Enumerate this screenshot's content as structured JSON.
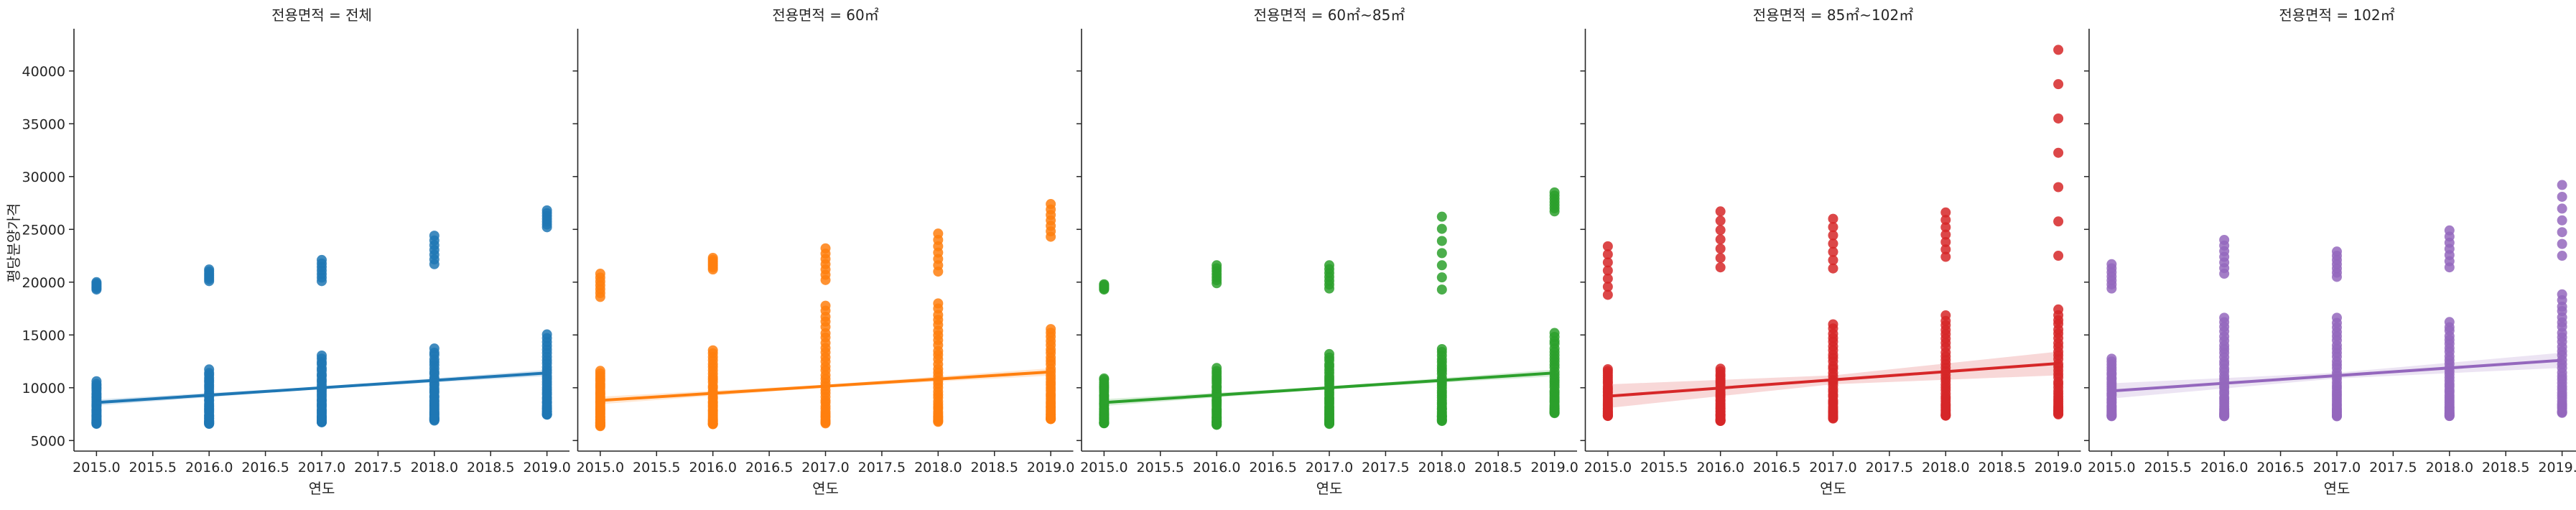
{
  "chart_data": {
    "type": "scatter",
    "grid": false,
    "xlabel": "연도",
    "ylabel": "평당분양가격",
    "xlim": [
      2014.8,
      2019.2
    ],
    "ylim": [
      4000,
      44000
    ],
    "xticks": [
      "2015.0",
      "2015.5",
      "2016.0",
      "2016.5",
      "2017.0",
      "2017.5",
      "2018.0",
      "2018.5",
      "2019.0"
    ],
    "yticks": [
      "5000",
      "10000",
      "15000",
      "20000",
      "25000",
      "30000",
      "35000",
      "40000"
    ],
    "facets": [
      {
        "title": "전용면적 = 전체",
        "color": "#1f77b4",
        "regression": {
          "start": [
            2015,
            8600
          ],
          "end": [
            2019,
            11400
          ],
          "ci_halfwidth": 180
        },
        "groups": [
          {
            "x": 2015,
            "low": [
              6600,
              10600
            ],
            "high": [
              19300,
              20000
            ]
          },
          {
            "x": 2016,
            "low": [
              6600,
              11700
            ],
            "high": [
              20100,
              21200
            ]
          },
          {
            "x": 2017,
            "low": [
              6700,
              13100
            ],
            "high": [
              20100,
              22100
            ]
          },
          {
            "x": 2018,
            "low": [
              6900,
              13700
            ],
            "high": [
              21700,
              24400
            ]
          },
          {
            "x": 2019,
            "low": [
              7400,
              15000
            ],
            "high": [
              25200,
              26800
            ]
          }
        ]
      },
      {
        "title": "전용면적 = 60㎡",
        "color": "#ff7f0e",
        "regression": {
          "start": [
            2015,
            8800
          ],
          "end": [
            2019,
            11500
          ],
          "ci_halfwidth": 220
        },
        "groups": [
          {
            "x": 2015,
            "low": [
              6400,
              11600
            ],
            "high": [
              18600,
              20800
            ]
          },
          {
            "x": 2016,
            "low": [
              6500,
              13600
            ],
            "high": [
              21200,
              22300
            ]
          },
          {
            "x": 2017,
            "low": [
              6600,
              17800
            ],
            "high": [
              20200,
              23200
            ]
          },
          {
            "x": 2018,
            "low": [
              6800,
              18000
            ],
            "high": [
              21000,
              24600
            ]
          },
          {
            "x": 2019,
            "low": [
              7000,
              15600
            ],
            "high": [
              24300,
              27400
            ]
          }
        ]
      },
      {
        "title": "전용면적 = 60㎡~85㎡",
        "color": "#2ca02c",
        "regression": {
          "start": [
            2015,
            8600
          ],
          "end": [
            2019,
            11400
          ],
          "ci_halfwidth": 200
        },
        "groups": [
          {
            "x": 2015,
            "low": [
              6600,
              10900
            ],
            "high": [
              19300,
              19800
            ]
          },
          {
            "x": 2016,
            "low": [
              6500,
              11900
            ],
            "high": [
              19900,
              21600
            ]
          },
          {
            "x": 2017,
            "low": [
              6600,
              13200
            ],
            "high": [
              19400,
              21600
            ]
          },
          {
            "x": 2018,
            "low": [
              6900,
              13700
            ],
            "high": [
              19300,
              26200
            ]
          },
          {
            "x": 2019,
            "low": [
              7600,
              15200
            ],
            "high": [
              26700,
              28500
            ]
          }
        ]
      },
      {
        "title": "전용면적 = 85㎡~102㎡",
        "color": "#d62728",
        "regression": {
          "start": [
            2015,
            9200
          ],
          "end": [
            2019,
            12300
          ],
          "ci_halfwidth": 700
        },
        "groups": [
          {
            "x": 2015,
            "low": [
              7300,
              11800
            ],
            "high": [
              18800,
              23400
            ]
          },
          {
            "x": 2016,
            "low": [
              6800,
              11800
            ],
            "high": [
              21400,
              26700
            ]
          },
          {
            "x": 2017,
            "low": [
              7100,
              16000
            ],
            "high": [
              21300,
              26000
            ]
          },
          {
            "x": 2018,
            "low": [
              7300,
              16800
            ],
            "high": [
              22400,
              26600
            ]
          },
          {
            "x": 2019,
            "low": [
              7500,
              17400
            ],
            "high": [
              22500,
              42000
            ]
          }
        ]
      },
      {
        "title": "전용면적 = 102㎡",
        "color": "#9467bd",
        "regression": {
          "start": [
            2015,
            9700
          ],
          "end": [
            2019,
            12600
          ],
          "ci_halfwidth": 450
        },
        "groups": [
          {
            "x": 2015,
            "low": [
              7300,
              12700
            ],
            "high": [
              19400,
              21700
            ]
          },
          {
            "x": 2016,
            "low": [
              7300,
              16600
            ],
            "high": [
              20800,
              24000
            ]
          },
          {
            "x": 2017,
            "low": [
              7300,
              16600
            ],
            "high": [
              20500,
              22900
            ]
          },
          {
            "x": 2018,
            "low": [
              7300,
              16200
            ],
            "high": [
              21400,
              24900
            ]
          },
          {
            "x": 2019,
            "low": [
              7600,
              18800
            ],
            "high": [
              22500,
              29200
            ]
          }
        ]
      }
    ]
  }
}
